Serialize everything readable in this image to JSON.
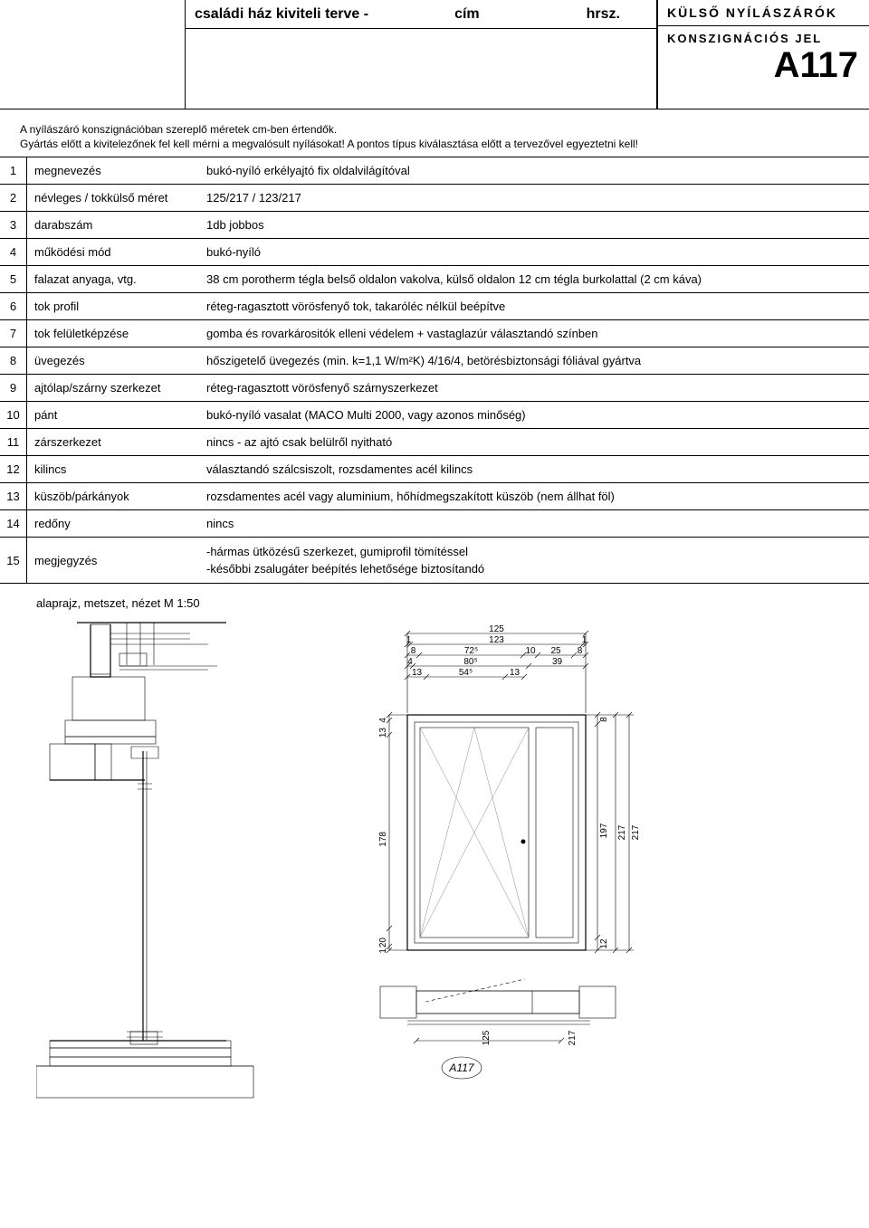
{
  "header": {
    "title": "családi ház kiviteli terve  -",
    "col_cim": "cím",
    "col_hrsz": "hrsz.",
    "right_line1": "KÜLSŐ NYÍLÁSZÁRÓK",
    "right_line2": "KONSZIGNÁCIÓS JEL",
    "code": "A117"
  },
  "notes": {
    "line1": "A nyílászáró konszignációban szereplő méretek cm-ben értendők.",
    "line2": "Gyártás előtt a kivitelezőnek fel kell mérni a megvalósult nyílásokat! A pontos típus kiválasztása előtt a tervezővel egyeztetni kell!"
  },
  "rows": [
    {
      "n": "1",
      "label": "megnevezés",
      "value": "bukó-nyíló erkélyajtó fix oldalvilágítóval"
    },
    {
      "n": "2",
      "label": "névleges / tokkülső méret",
      "value": "125/217     /     123/217"
    },
    {
      "n": "3",
      "label": "darabszám",
      "value": "1db jobbos"
    },
    {
      "n": "4",
      "label": "működési mód",
      "value": "bukó-nyíló"
    },
    {
      "n": "5",
      "label": "falazat anyaga, vtg.",
      "value": "38 cm porotherm tégla belső oldalon vakolva, külső oldalon 12 cm tégla burkolattal (2 cm káva)"
    },
    {
      "n": "6",
      "label": "tok profil",
      "value": "réteg-ragasztott vörösfenyő tok, takaróléc nélkül beépítve"
    },
    {
      "n": "7",
      "label": "tok felületképzése",
      "value": "gomba és rovarkárositók elleni védelem + vastaglazúr választandó színben"
    },
    {
      "n": "8",
      "label": "üvegezés",
      "value": "hőszigetelő üvegezés (min. k=1,1 W/m²K)    4/16/4,  betörésbiztonsági fóliával gyártva"
    },
    {
      "n": "9",
      "label": "ajtólap/szárny szerkezet",
      "value": "réteg-ragasztott vörösfenyő szárnyszerkezet"
    },
    {
      "n": "10",
      "label": "pánt",
      "value": "bukó-nyíló vasalat  (MACO Multi 2000, vagy azonos minőség)"
    },
    {
      "n": "11",
      "label": "zárszerkezet",
      "value": "nincs - az ajtó csak belülről nyitható"
    },
    {
      "n": "12",
      "label": "kilincs",
      "value": "választandó szálcsiszolt, rozsdamentes acél kilincs"
    },
    {
      "n": "13",
      "label": "küszöb/párkányok",
      "value": "rozsdamentes acél vagy aluminium, hőhídmegszakított  küszöb (nem állhat föl)"
    },
    {
      "n": "14",
      "label": "redőny",
      "value": "nincs"
    },
    {
      "n": "15",
      "label": "megjegyzés",
      "value": "",
      "multi": [
        "-hármas ütközésű szerkezet, gumiprofil tömítéssel",
        "-későbbi zsalugáter beépítés lehetősége biztosítandó"
      ]
    }
  ],
  "drawing_label": "alaprajz, metszet, nézet M 1:50",
  "elevation": {
    "top_dims": {
      "overall": "125",
      "row2": [
        "1",
        "123",
        "1"
      ],
      "row3": [
        "8",
        "72⁵",
        "10",
        "25",
        "8"
      ],
      "row4": [
        "4",
        "80⁵",
        "39"
      ],
      "row5": [
        "13",
        "54⁵",
        "13"
      ]
    },
    "left_dims": [
      "4",
      "13",
      "178",
      "20",
      "1"
    ],
    "right_dims": [
      "8",
      "197",
      "12"
    ],
    "right_dims2": [
      "217",
      "217"
    ],
    "bottom_dims": [
      "125",
      "217"
    ],
    "tag": "A117"
  },
  "section": {
    "colors": {
      "wall_hatch": "#888888",
      "insul_hatch": "#4a6b4a",
      "line": "#000000",
      "light": "#bdbdbd"
    }
  }
}
